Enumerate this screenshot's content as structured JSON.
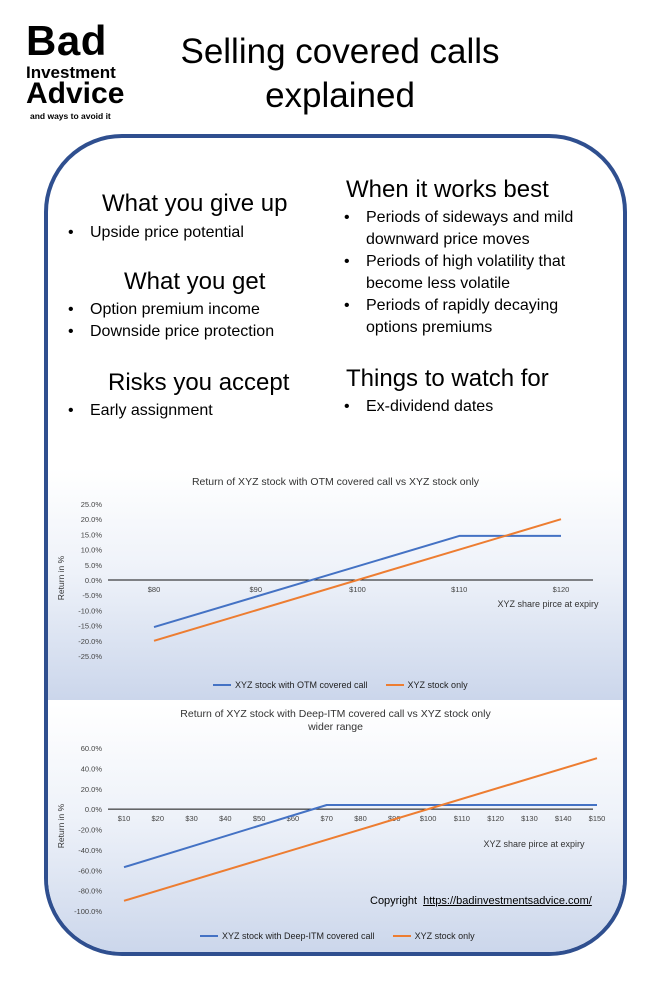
{
  "logo": {
    "line1": "Bad",
    "line2": "Investment",
    "line3": "Advice",
    "tagline": "and ways to avoid it"
  },
  "title": {
    "line1": "Selling covered calls",
    "line2": "explained"
  },
  "sections": {
    "give_up": {
      "heading": "What you give up",
      "items": [
        "Upside price potential"
      ]
    },
    "get": {
      "heading": "What you get",
      "items": [
        "Option premium income",
        "Downside price protection"
      ]
    },
    "risks": {
      "heading": "Risks you accept",
      "items": [
        "Early assignment"
      ]
    },
    "works_best": {
      "heading": "When it works best",
      "items": [
        "Periods of sideways and mild downward price moves",
        "Periods of high volatility that become less volatile",
        "Periods of rapidly decaying options premiums"
      ]
    },
    "watch": {
      "heading": "Things to watch for",
      "items": [
        "Ex-dividend dates"
      ]
    }
  },
  "copyright": {
    "label": "Copyright",
    "url": "https://badinvestmentsadvice.com/"
  },
  "colors": {
    "blue_series": "#4472c4",
    "orange_series": "#ed7d31",
    "frame": "#2f4f8f"
  },
  "chart_data": [
    {
      "type": "line",
      "title": "Return of XYZ stock with OTM covered call vs XYZ stock only",
      "xlabel": "XYZ share pirce at expiry",
      "ylabel": "Return in %",
      "x": [
        80,
        90,
        100,
        110,
        120
      ],
      "x_tick_labels": [
        "$80",
        "$90",
        "$100",
        "$110",
        "$120"
      ],
      "y_tick_labels": [
        "25.0%",
        "20.0%",
        "15.0%",
        "10.0%",
        "5.0%",
        "0.0%",
        "-5.0%",
        "-10.0%",
        "-15.0%",
        "-20.0%",
        "-25.0%"
      ],
      "ylim": [
        -25,
        25
      ],
      "series": [
        {
          "name": "XYZ stock with OTM covered call",
          "color": "#4472c4",
          "points": [
            [
              80,
              -15.5
            ],
            [
              110,
              14.5
            ],
            [
              120,
              14.5
            ]
          ]
        },
        {
          "name": "XYZ stock only",
          "color": "#ed7d31",
          "points": [
            [
              80,
              -20
            ],
            [
              120,
              20
            ]
          ]
        }
      ],
      "legend": "bottom"
    },
    {
      "type": "line",
      "title": "Return of XYZ stock with Deep-ITM covered call vs XYZ stock only",
      "subtitle": "wider range",
      "xlabel": "XYZ share pirce at expiry",
      "ylabel": "Return in %",
      "x": [
        10,
        20,
        30,
        40,
        50,
        60,
        70,
        80,
        90,
        100,
        110,
        120,
        130,
        140,
        150
      ],
      "x_tick_labels": [
        "$10",
        "$20",
        "$30",
        "$40",
        "$50",
        "$60",
        "$70",
        "$80",
        "$90",
        "$100",
        "$110",
        "$120",
        "$130",
        "$140",
        "$150"
      ],
      "y_tick_labels": [
        "60.0%",
        "40.0%",
        "20.0%",
        "0.0%",
        "-20.0%",
        "-40.0%",
        "-60.0%",
        "-80.0%",
        "-100.0%"
      ],
      "ylim": [
        -100,
        60
      ],
      "series": [
        {
          "name": "XYZ stock with Deep-ITM covered call",
          "color": "#4472c4",
          "points": [
            [
              10,
              -57
            ],
            [
              70,
              4
            ],
            [
              150,
              4
            ]
          ]
        },
        {
          "name": "XYZ stock only",
          "color": "#ed7d31",
          "points": [
            [
              10,
              -90
            ],
            [
              150,
              50
            ]
          ]
        }
      ],
      "legend": "bottom"
    }
  ]
}
